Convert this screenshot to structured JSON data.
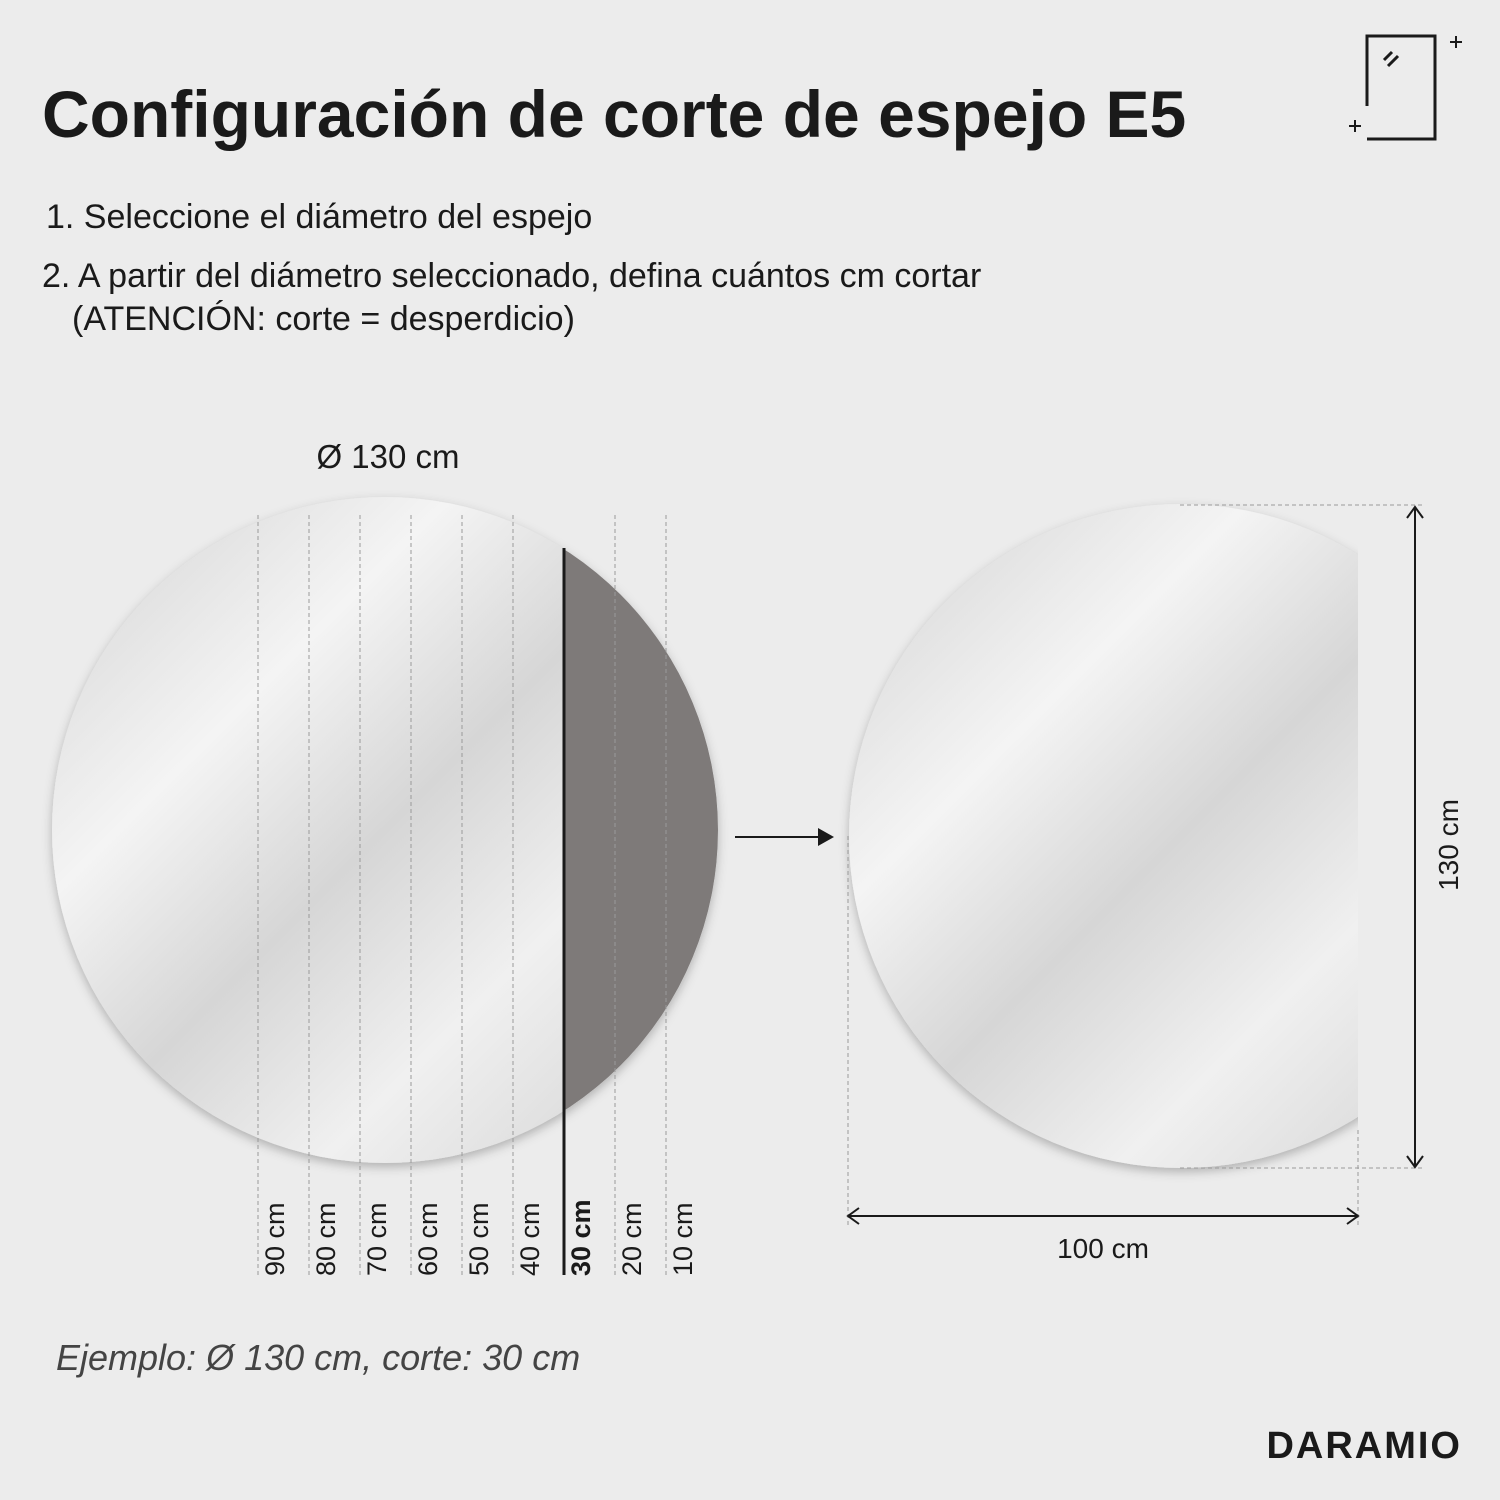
{
  "header": {
    "title": "Configuración de corte de espejo E5"
  },
  "steps": [
    "1. Seleccione el diámetro del espejo",
    "2. A partir del diámetro seleccionado, defina cuántos cm cortar",
    "(ATENCIÓN: corte = desperdicio)"
  ],
  "diagram": {
    "diameter_label": "Ø 130 cm",
    "cut_labels": [
      "90 cm",
      "80 cm",
      "70 cm",
      "60 cm",
      "50 cm",
      "40 cm",
      "30 cm",
      "20 cm",
      "10 cm"
    ],
    "result_height_label": "130 cm",
    "result_width_label": "100 cm"
  },
  "example": "Ejemplo: Ø 130 cm, corte: 30 cm",
  "brand": "DARAMIO"
}
